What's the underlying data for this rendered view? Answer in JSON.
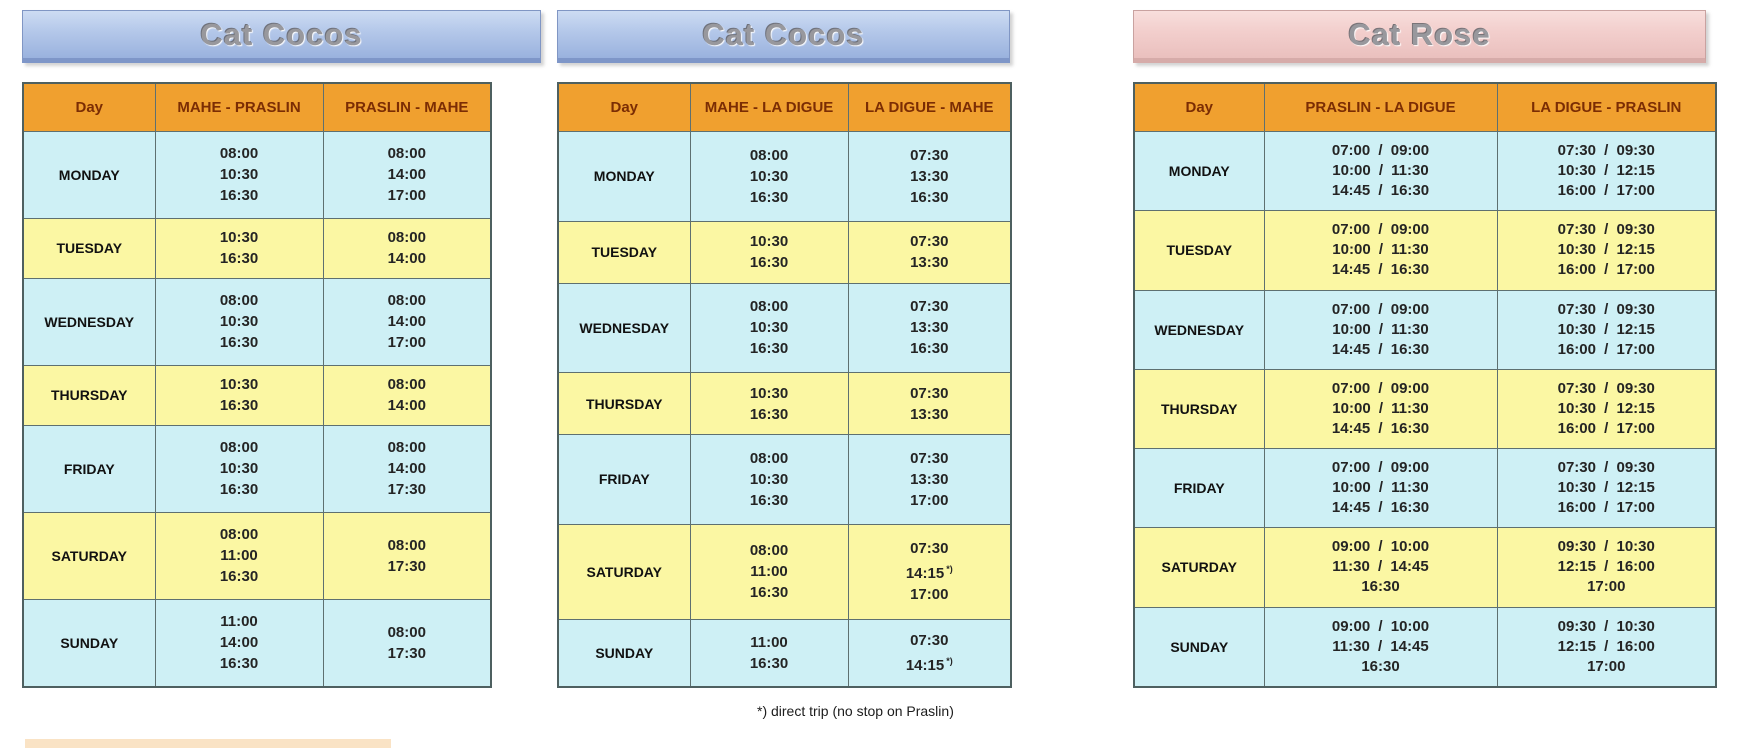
{
  "footnote": "*) direct trip (no stop on Praslin)",
  "colors": {
    "header_bg": "#f0a02f",
    "header_text": "#7b2d04",
    "row_blue": "#cef0f5",
    "row_yellow": "#fbf7a3",
    "banner_blue": "#9ab2de",
    "banner_pink": "#eac0be"
  },
  "tables": [
    {
      "title": "Cat Cocos",
      "columns": [
        "Day",
        "MAHE - PRASLIN",
        "PRASLIN - MAHE"
      ],
      "rows": [
        {
          "day": "MONDAY",
          "out": [
            "08:00",
            "10:30",
            "16:30"
          ],
          "back": [
            "08:00",
            "14:00",
            "17:00"
          ]
        },
        {
          "day": "TUESDAY",
          "out": [
            "10:30",
            "16:30"
          ],
          "back": [
            "08:00",
            "14:00"
          ]
        },
        {
          "day": "WEDNESDAY",
          "out": [
            "08:00",
            "10:30",
            "16:30"
          ],
          "back": [
            "08:00",
            "14:00",
            "17:00"
          ]
        },
        {
          "day": "THURSDAY",
          "out": [
            "10:30",
            "16:30"
          ],
          "back": [
            "08:00",
            "14:00"
          ]
        },
        {
          "day": "FRIDAY",
          "out": [
            "08:00",
            "10:30",
            "16:30"
          ],
          "back": [
            "08:00",
            "14:00",
            "17:30"
          ]
        },
        {
          "day": "SATURDAY",
          "out": [
            "08:00",
            "11:00",
            "16:30"
          ],
          "back": [
            "08:00",
            "17:30"
          ]
        },
        {
          "day": "SUNDAY",
          "out": [
            "11:00",
            "14:00",
            "16:30"
          ],
          "back": [
            "08:00",
            "17:30"
          ]
        }
      ]
    },
    {
      "title": "Cat Cocos",
      "columns": [
        "Day",
        "MAHE - LA DIGUE",
        "LA DIGUE - MAHE"
      ],
      "rows": [
        {
          "day": "MONDAY",
          "out": [
            "08:00",
            "10:30",
            "16:30"
          ],
          "back": [
            "07:30",
            "13:30",
            "16:30"
          ]
        },
        {
          "day": "TUESDAY",
          "out": [
            "10:30",
            "16:30"
          ],
          "back": [
            "07:30",
            "13:30"
          ]
        },
        {
          "day": "WEDNESDAY",
          "out": [
            "08:00",
            "10:30",
            "16:30"
          ],
          "back": [
            "07:30",
            "13:30",
            "16:30"
          ]
        },
        {
          "day": "THURSDAY",
          "out": [
            "10:30",
            "16:30"
          ],
          "back": [
            "07:30",
            "13:30"
          ]
        },
        {
          "day": "FRIDAY",
          "out": [
            "08:00",
            "10:30",
            "16:30"
          ],
          "back": [
            "07:30",
            "13:30",
            "17:00"
          ]
        },
        {
          "day": "SATURDAY",
          "out": [
            "08:00",
            "11:00",
            "16:30"
          ],
          "back": [
            "07:30",
            "14:15^*)",
            "17:00"
          ]
        },
        {
          "day": "SUNDAY",
          "out": [
            "11:00",
            "16:30"
          ],
          "back": [
            "07:30",
            "14:15^*)"
          ]
        }
      ]
    },
    {
      "title": "Cat Rose",
      "columns": [
        "Day",
        "PRASLIN - LA DIGUE",
        "LA DIGUE - PRASLIN"
      ],
      "rows": [
        {
          "day": "MONDAY",
          "out": [
            "07:00 / 09:00",
            "10:00 / 11:30",
            "14:45 / 16:30"
          ],
          "back": [
            "07:30 / 09:30",
            "10:30 / 12:15",
            "16:00 / 17:00"
          ]
        },
        {
          "day": "TUESDAY",
          "out": [
            "07:00 / 09:00",
            "10:00 / 11:30",
            "14:45 / 16:30"
          ],
          "back": [
            "07:30 / 09:30",
            "10:30 / 12:15",
            "16:00 / 17:00"
          ]
        },
        {
          "day": "WEDNESDAY",
          "out": [
            "07:00 / 09:00",
            "10:00 / 11:30",
            "14:45 / 16:30"
          ],
          "back": [
            "07:30 / 09:30",
            "10:30 / 12:15",
            "16:00 / 17:00"
          ]
        },
        {
          "day": "THURSDAY",
          "out": [
            "07:00 / 09:00",
            "10:00 / 11:30",
            "14:45 / 16:30"
          ],
          "back": [
            "07:30 / 09:30",
            "10:30 / 12:15",
            "16:00 / 17:00"
          ]
        },
        {
          "day": "FRIDAY",
          "out": [
            "07:00 / 09:00",
            "10:00 / 11:30",
            "14:45 / 16:30"
          ],
          "back": [
            "07:30 / 09:30",
            "10:30 / 12:15",
            "16:00 / 17:00"
          ]
        },
        {
          "day": "SATURDAY",
          "out": [
            "09:00 / 10:00",
            "11:30 / 14:45",
            "16:30"
          ],
          "back": [
            "09:30 / 10:30",
            "12:15 / 16:00",
            "17:00"
          ]
        },
        {
          "day": "SUNDAY",
          "out": [
            "09:00 / 10:00",
            "11:30 / 14:45",
            "16:30"
          ],
          "back": [
            "09:30 / 10:30",
            "12:15 / 16:00",
            "17:00"
          ]
        }
      ]
    }
  ]
}
